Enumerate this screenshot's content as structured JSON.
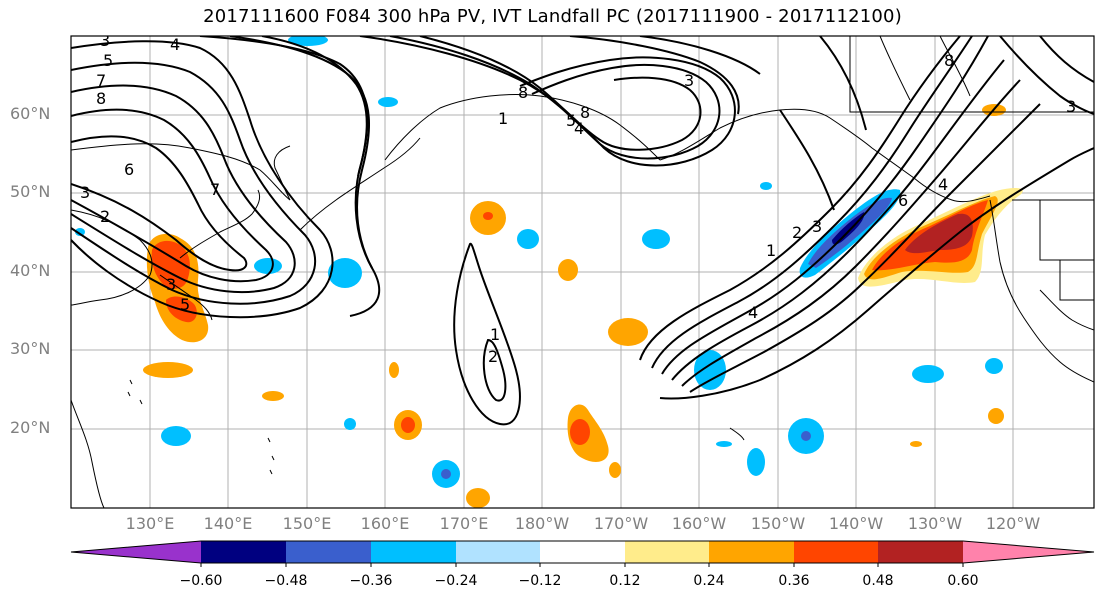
{
  "title": "2017111600 F084 300 hPa PV, IVT Landfall PC (2017111900 - 2017112100)",
  "latitude_labels": [
    "60°N",
    "50°N",
    "40°N",
    "30°N",
    "20°N"
  ],
  "longitude_labels": [
    "130°E",
    "140°E",
    "150°E",
    "160°E",
    "170°E",
    "180°W",
    "170°W",
    "160°W",
    "150°W",
    "140°W",
    "130°W",
    "120°W"
  ],
  "colorbar": {
    "tick_labels": [
      "−0.60",
      "−0.48",
      "−0.36",
      "−0.24",
      "−0.12",
      "0.12",
      "0.24",
      "0.36",
      "0.48",
      "0.60"
    ],
    "colors": [
      "#9932CC",
      "#000080",
      "#3A5FCD",
      "#00BFFF",
      "#B0E2FF",
      "#FFFFFF",
      "#FFEC8B",
      "#FFA500",
      "#FF4500",
      "#B22222",
      "#FF82AB"
    ]
  },
  "contour_labels": {
    "nw_a": "3",
    "nw_b": "4",
    "nw_c": "5",
    "nw_d": "7",
    "nw_e": "8",
    "west_a": "6",
    "west_b": "3",
    "west_c": "7",
    "west_d": "2",
    "japan_a": "3",
    "japan_b": "5",
    "aleut_a": "1",
    "aleut_b": "8",
    "aleut_c": "5",
    "aleut_d": "4",
    "aleut_e": "3",
    "aleut_f": "8",
    "mid_a": "1",
    "mid_b": "2",
    "east_a": "1",
    "east_b": "2",
    "east_c": "3",
    "east_d": "4",
    "east_e": "6",
    "east_f": "4",
    "ne_a": "8",
    "ne_b": "3"
  }
}
